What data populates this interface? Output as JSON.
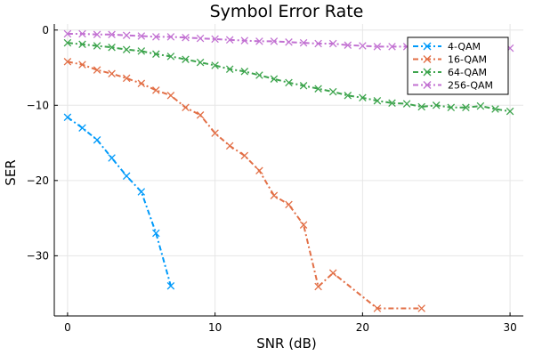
{
  "chart_data": {
    "type": "line",
    "title": "Symbol Error Rate",
    "xlabel": "SNR (dB)",
    "ylabel": "SER",
    "xlim": [
      -0.9,
      30.9
    ],
    "ylim": [
      -38.0,
      0.8
    ],
    "xticks": [
      0,
      10,
      20,
      30
    ],
    "yticks": [
      0,
      -10,
      -20,
      -30
    ],
    "grid": true,
    "legend_position": "top-right",
    "line_style": "dash-dot with x markers",
    "series": [
      {
        "name": "4-QAM",
        "color": "#009AFA",
        "x": [
          0,
          1,
          2,
          3,
          4,
          5,
          6,
          7
        ],
        "y": [
          -11.6,
          -13.0,
          -14.6,
          -17.0,
          -19.4,
          -21.5,
          -27.0,
          -34.0
        ]
      },
      {
        "name": "16-QAM",
        "color": "#E26F46",
        "x": [
          0,
          1,
          2,
          3,
          4,
          5,
          6,
          7,
          8,
          9,
          10,
          11,
          12,
          13,
          14,
          15,
          16,
          17,
          18,
          21,
          24
        ],
        "y": [
          -4.2,
          -4.6,
          -5.3,
          -5.8,
          -6.4,
          -7.1,
          -8.0,
          -8.7,
          -10.3,
          -11.3,
          -13.7,
          -15.4,
          -16.7,
          -18.7,
          -22.0,
          -23.2,
          -25.9,
          -34.1,
          -32.3,
          -37.0,
          -37.0
        ]
      },
      {
        "name": "64-QAM",
        "color": "#3DA44D",
        "x": [
          0,
          1,
          2,
          3,
          4,
          5,
          6,
          7,
          8,
          9,
          10,
          11,
          12,
          13,
          14,
          15,
          16,
          17,
          18,
          19,
          20,
          21,
          22,
          23,
          24,
          25,
          26,
          27,
          28,
          29,
          30
        ],
        "y": [
          -1.7,
          -1.9,
          -2.1,
          -2.3,
          -2.6,
          -2.8,
          -3.2,
          -3.5,
          -3.9,
          -4.3,
          -4.7,
          -5.2,
          -5.5,
          -6.0,
          -6.5,
          -7.0,
          -7.4,
          -7.8,
          -8.2,
          -8.7,
          -9.0,
          -9.4,
          -9.7,
          -9.8,
          -10.2,
          -10.0,
          -10.3,
          -10.3,
          -10.1,
          -10.5,
          -10.8
        ]
      },
      {
        "name": "256-QAM",
        "color": "#C271D2",
        "x": [
          0,
          1,
          2,
          3,
          4,
          5,
          6,
          7,
          8,
          9,
          10,
          11,
          12,
          13,
          14,
          15,
          16,
          17,
          18,
          19,
          20,
          21,
          22,
          23,
          24,
          25,
          26,
          27,
          28,
          29,
          30
        ],
        "y": [
          -0.5,
          -0.5,
          -0.6,
          -0.6,
          -0.7,
          -0.8,
          -0.9,
          -0.9,
          -1.0,
          -1.1,
          -1.2,
          -1.3,
          -1.4,
          -1.5,
          -1.5,
          -1.6,
          -1.7,
          -1.8,
          -1.8,
          -2.0,
          -2.1,
          -2.2,
          -2.2,
          -2.2,
          -2.3,
          -2.4,
          -2.3,
          -2.5,
          -2.5,
          -2.4,
          -2.4
        ]
      }
    ]
  }
}
